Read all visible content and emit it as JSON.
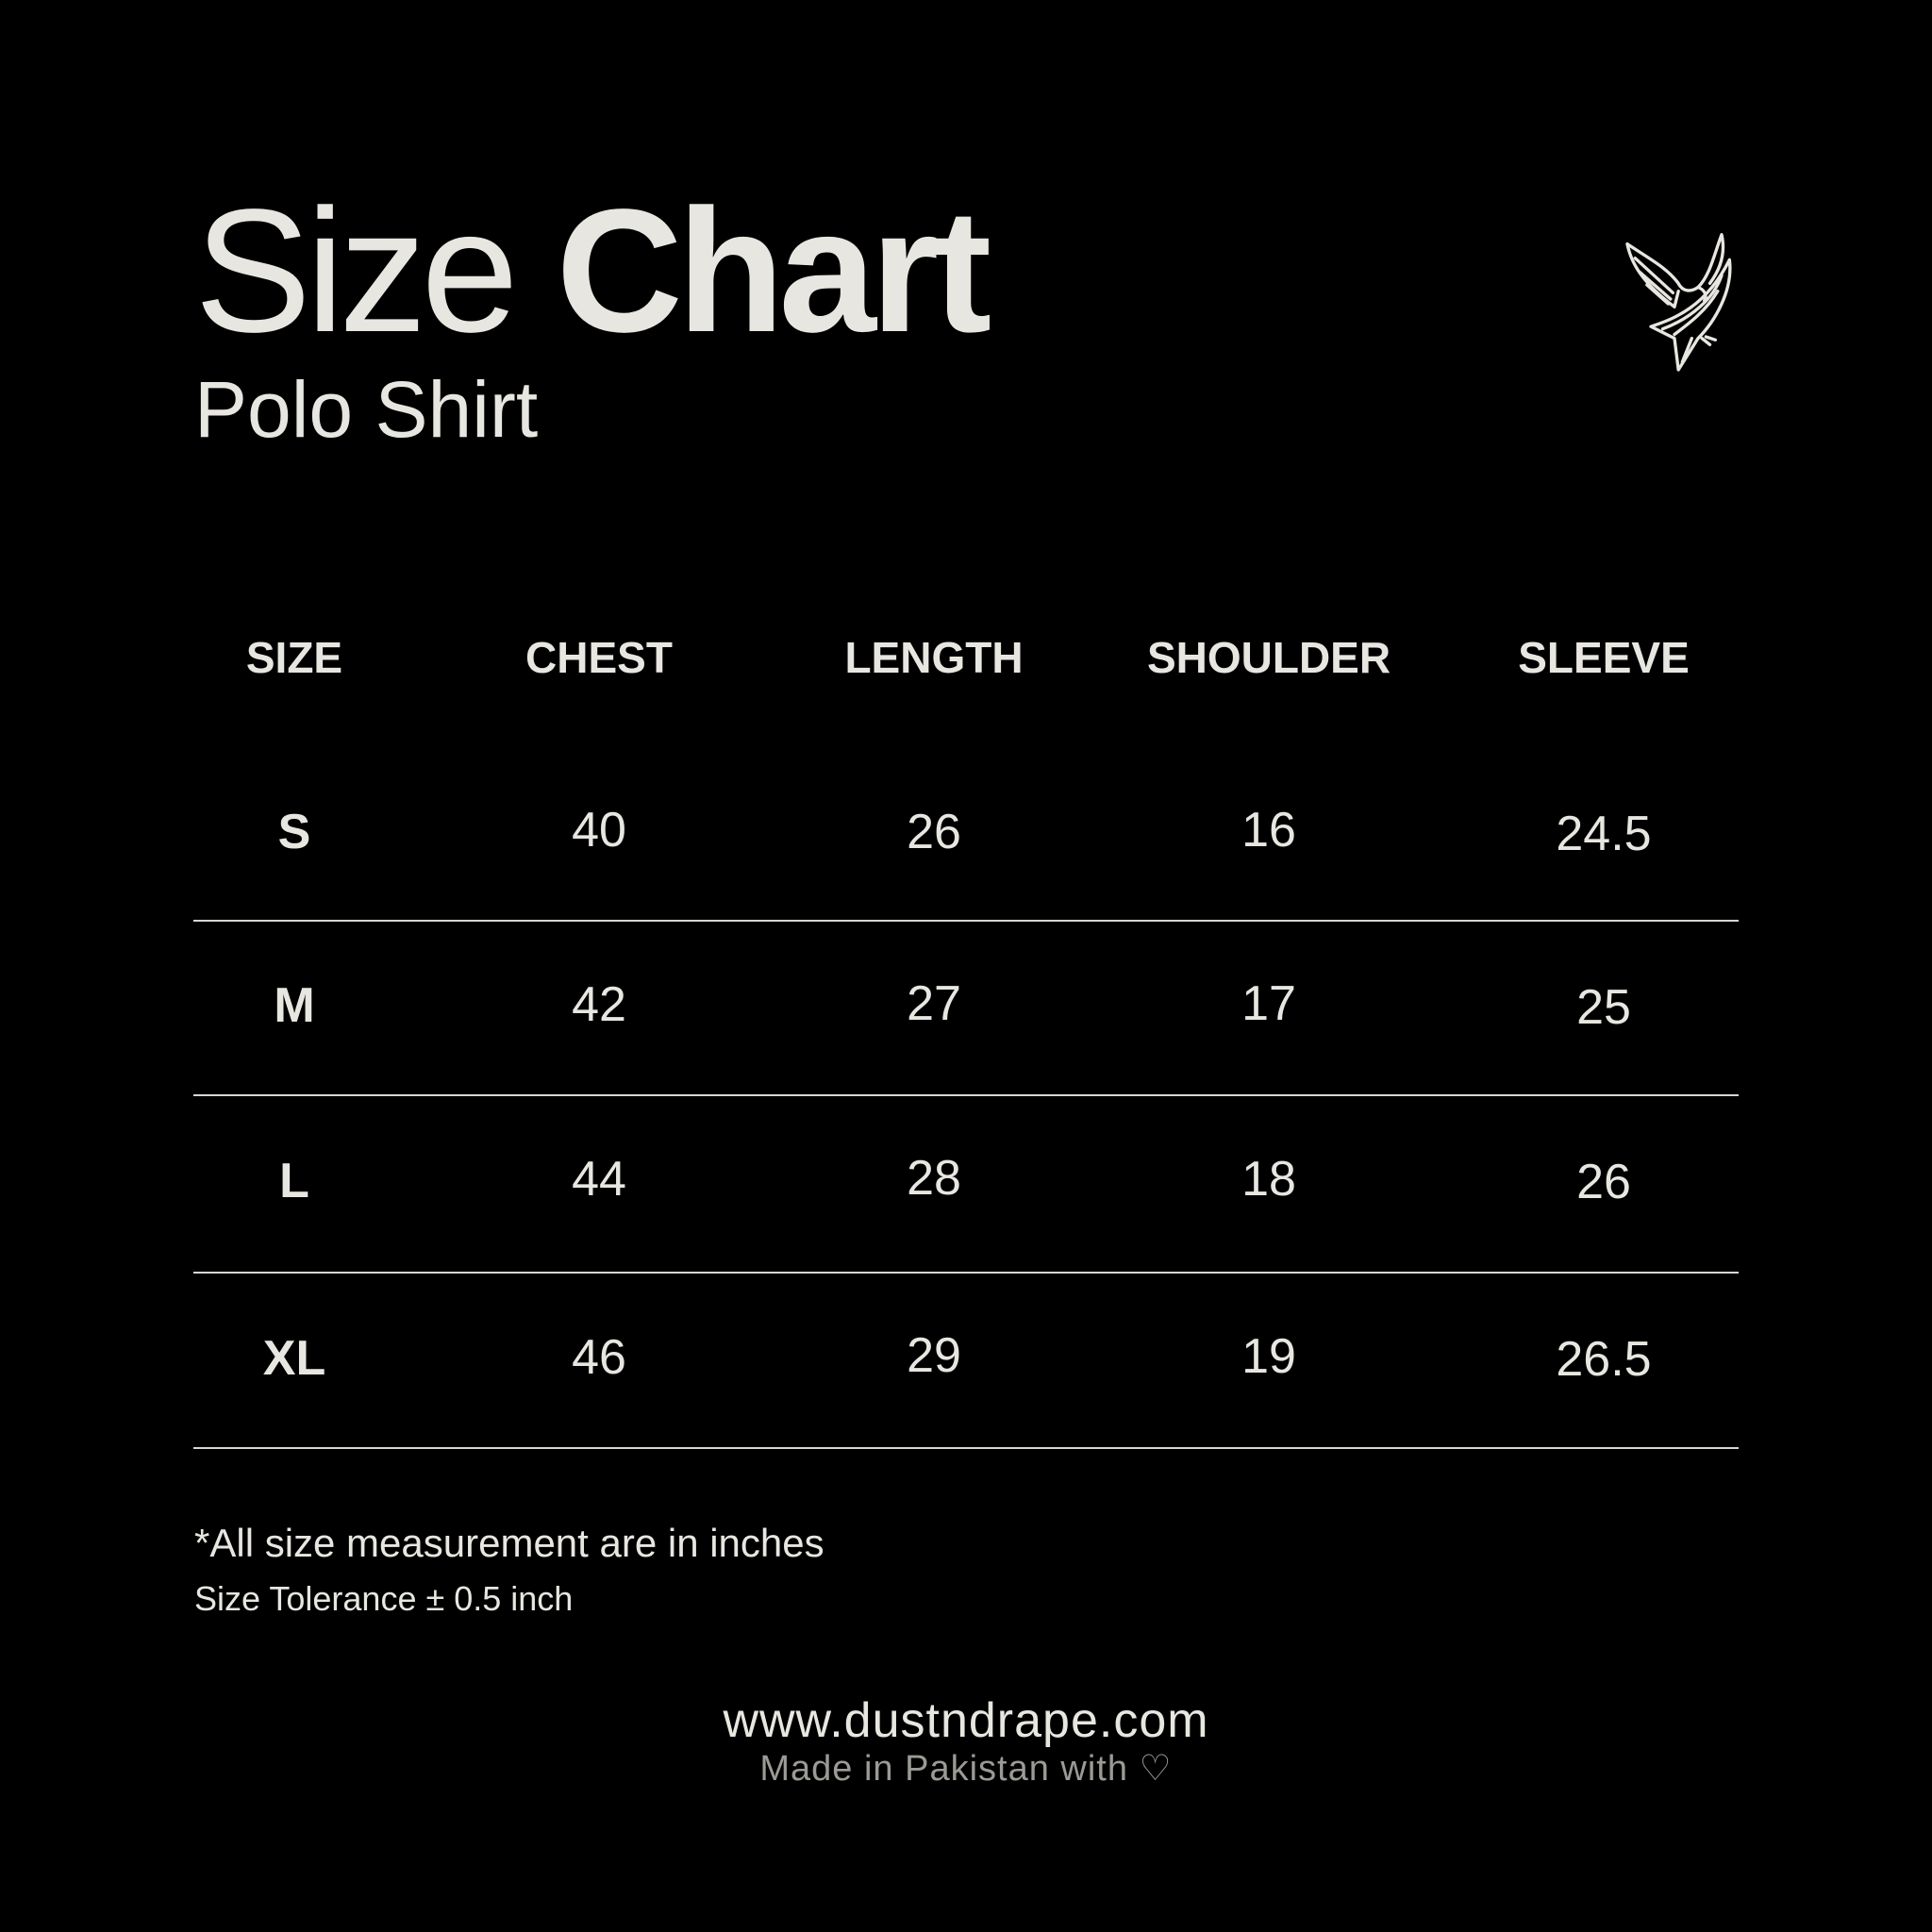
{
  "header": {
    "title_light": "Size",
    "title_bold": "Chart",
    "subtitle": "Polo Shirt",
    "logo": "eagle-logo"
  },
  "table": {
    "columns": [
      "SIZE",
      "CHEST",
      "LENGTH",
      "SHOULDER",
      "SLEEVE"
    ],
    "rows": [
      [
        "S",
        "40",
        "26",
        "16",
        "24.5"
      ],
      [
        "M",
        "42",
        "27",
        "17",
        "25"
      ],
      [
        "L",
        "44",
        "28",
        "18",
        "26"
      ],
      [
        "XL",
        "46",
        "29",
        "19",
        "26.5"
      ]
    ]
  },
  "notes": {
    "units": "*All size measurement are in inches",
    "tolerance": "Size Tolerance ± 0.5 inch"
  },
  "footer": {
    "url": "www.dustndrape.com",
    "made_in": "Made in Pakistan with ♡"
  },
  "colors": {
    "background": "#000000",
    "text": "#e8e6e0",
    "muted": "#9c9a95"
  }
}
